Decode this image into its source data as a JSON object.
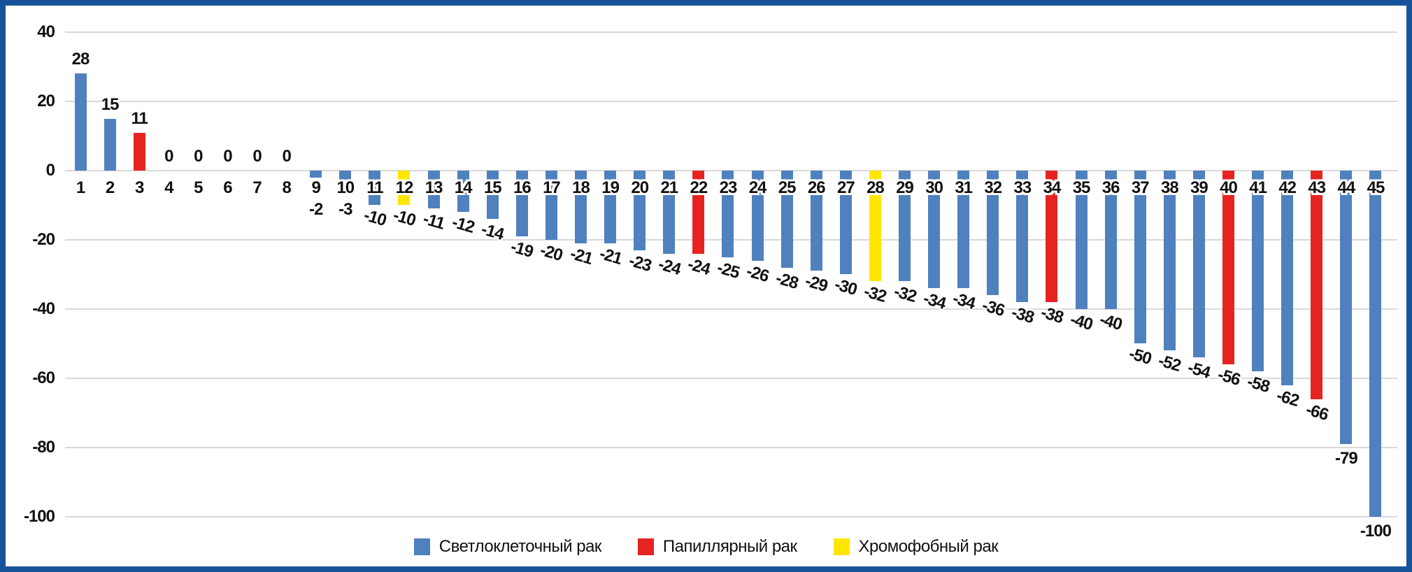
{
  "frame": {
    "border_color": "#17539B",
    "background_color": "#FFFFFF"
  },
  "chart_data": {
    "type": "bar",
    "title": "",
    "xlabel": "",
    "ylabel": "",
    "ylim": [
      -100,
      40
    ],
    "grid": true,
    "gridline_color": "#D9D9D9",
    "y_ticks": [
      40,
      20,
      0,
      -20,
      -40,
      -60,
      -80,
      -100
    ],
    "colors": {
      "clear_cell": "#4E81BD",
      "papillary": "#E52421",
      "chromophobe": "#FFE600"
    },
    "categories": [
      "1",
      "2",
      "3",
      "4",
      "5",
      "6",
      "7",
      "8",
      "9",
      "10",
      "11",
      "12",
      "13",
      "14",
      "15",
      "16",
      "17",
      "18",
      "19",
      "20",
      "21",
      "22",
      "23",
      "24",
      "25",
      "26",
      "27",
      "28",
      "29",
      "30",
      "31",
      "32",
      "33",
      "34",
      "35",
      "36",
      "37",
      "38",
      "39",
      "40",
      "41",
      "42",
      "43",
      "44",
      "45"
    ],
    "points": [
      {
        "category": "1",
        "value": 28,
        "group": "clear_cell"
      },
      {
        "category": "2",
        "value": 15,
        "group": "clear_cell"
      },
      {
        "category": "3",
        "value": 11,
        "group": "papillary"
      },
      {
        "category": "4",
        "value": 0,
        "group": "clear_cell"
      },
      {
        "category": "5",
        "value": 0,
        "group": "clear_cell"
      },
      {
        "category": "6",
        "value": 0,
        "group": "clear_cell"
      },
      {
        "category": "7",
        "value": 0,
        "group": "clear_cell"
      },
      {
        "category": "8",
        "value": 0,
        "group": "clear_cell"
      },
      {
        "category": "9",
        "value": -2,
        "group": "clear_cell"
      },
      {
        "category": "10",
        "value": -3,
        "group": "clear_cell"
      },
      {
        "category": "11",
        "value": -10,
        "group": "clear_cell"
      },
      {
        "category": "12",
        "value": -10,
        "group": "chromophobe"
      },
      {
        "category": "13",
        "value": -11,
        "group": "clear_cell"
      },
      {
        "category": "14",
        "value": -12,
        "group": "clear_cell"
      },
      {
        "category": "15",
        "value": -14,
        "group": "clear_cell"
      },
      {
        "category": "16",
        "value": -19,
        "group": "clear_cell"
      },
      {
        "category": "17",
        "value": -20,
        "group": "clear_cell"
      },
      {
        "category": "18",
        "value": -21,
        "group": "clear_cell"
      },
      {
        "category": "19",
        "value": -21,
        "group": "clear_cell"
      },
      {
        "category": "20",
        "value": -23,
        "group": "clear_cell"
      },
      {
        "category": "21",
        "value": -24,
        "group": "clear_cell"
      },
      {
        "category": "22",
        "value": -24,
        "group": "papillary"
      },
      {
        "category": "23",
        "value": -25,
        "group": "clear_cell"
      },
      {
        "category": "24",
        "value": -26,
        "group": "clear_cell"
      },
      {
        "category": "25",
        "value": -28,
        "group": "clear_cell"
      },
      {
        "category": "26",
        "value": -29,
        "group": "clear_cell"
      },
      {
        "category": "27",
        "value": -30,
        "group": "clear_cell"
      },
      {
        "category": "28",
        "value": -32,
        "group": "chromophobe"
      },
      {
        "category": "29",
        "value": -32,
        "group": "clear_cell"
      },
      {
        "category": "30",
        "value": -34,
        "group": "clear_cell"
      },
      {
        "category": "31",
        "value": -34,
        "group": "clear_cell"
      },
      {
        "category": "32",
        "value": -36,
        "group": "clear_cell"
      },
      {
        "category": "33",
        "value": -38,
        "group": "clear_cell"
      },
      {
        "category": "34",
        "value": -38,
        "group": "papillary"
      },
      {
        "category": "35",
        "value": -40,
        "group": "clear_cell"
      },
      {
        "category": "36",
        "value": -40,
        "group": "clear_cell"
      },
      {
        "category": "37",
        "value": -50,
        "group": "clear_cell"
      },
      {
        "category": "38",
        "value": -52,
        "group": "clear_cell"
      },
      {
        "category": "39",
        "value": -54,
        "group": "clear_cell"
      },
      {
        "category": "40",
        "value": -56,
        "group": "papillary"
      },
      {
        "category": "41",
        "value": -58,
        "group": "clear_cell"
      },
      {
        "category": "42",
        "value": -62,
        "group": "clear_cell"
      },
      {
        "category": "43",
        "value": -66,
        "group": "papillary"
      },
      {
        "category": "44",
        "value": -79,
        "group": "clear_cell"
      },
      {
        "category": "45",
        "value": -100,
        "group": "clear_cell"
      }
    ],
    "legend": [
      {
        "label": "Светлоклеточный рак",
        "color": "#4E81BD",
        "group": "clear_cell"
      },
      {
        "label": "Папиллярный рак",
        "color": "#E52421",
        "group": "papillary"
      },
      {
        "label": "Хромофобный рак",
        "color": "#FFE600",
        "group": "chromophobe"
      }
    ],
    "legend_position": "bottom-center"
  }
}
